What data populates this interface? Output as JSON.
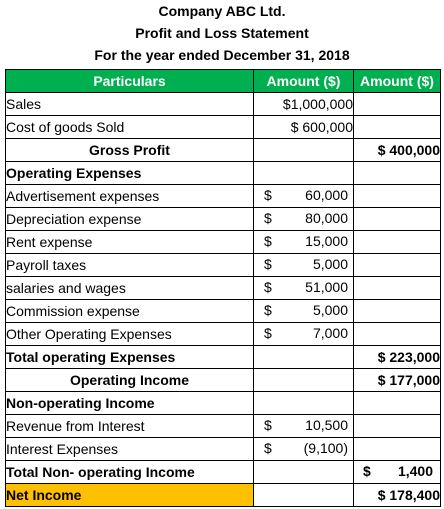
{
  "header": {
    "company": "Company ABC Ltd.",
    "statement": "Profit and Loss Statement",
    "period": "For the year ended December 31, 2018"
  },
  "columns": {
    "particulars": "Particulars",
    "amount1": "Amount ($)",
    "amount2": "Amount ($)"
  },
  "rows": {
    "sales": {
      "label": "Sales",
      "amount1": "$1,000,000"
    },
    "cogs": {
      "label": "Cost of goods Sold",
      "amount1": "$ 600,000"
    },
    "gross_profit": {
      "label": "Gross Profit",
      "amount2": "$ 400,000"
    },
    "opex_heading": {
      "label": "Operating Expenses"
    },
    "advertisement": {
      "label": "Advertisement expenses",
      "currency": "$",
      "amount": "60,000"
    },
    "depreciation": {
      "label": "Depreciation expense",
      "currency": "$",
      "amount": "80,000"
    },
    "rent": {
      "label": "Rent expense",
      "currency": "$",
      "amount": "15,000"
    },
    "payroll": {
      "label": "Payroll taxes",
      "currency": "$",
      "amount": "5,000"
    },
    "salaries": {
      "label": "salaries and wages",
      "currency": "$",
      "amount": "51,000"
    },
    "commission": {
      "label": "Commission expense",
      "currency": "$",
      "amount": "5,000"
    },
    "other_opex": {
      "label": "Other Operating Expenses",
      "currency": "$",
      "amount": "7,000"
    },
    "total_opex": {
      "label": "Total operating Expenses",
      "amount2": "$ 223,000"
    },
    "operating_income": {
      "label": "Operating Income",
      "amount2": "$ 177,000"
    },
    "nonop_heading": {
      "label": "Non-operating Income"
    },
    "interest_revenue": {
      "label": "Revenue from Interest",
      "currency": "$",
      "amount": "10,500"
    },
    "interest_expense": {
      "label": "Interest Expenses",
      "currency": "$",
      "amount": "(9,100)"
    },
    "total_nonop": {
      "label": "Total Non- operating Income",
      "currency": "$",
      "amount2": "1,400"
    },
    "net_income": {
      "label": "Net Income",
      "amount2": "$ 178,400"
    }
  },
  "colors": {
    "header_fill": "#00b050",
    "header_text": "#ffffff",
    "net_income_fill": "#ffc000"
  }
}
